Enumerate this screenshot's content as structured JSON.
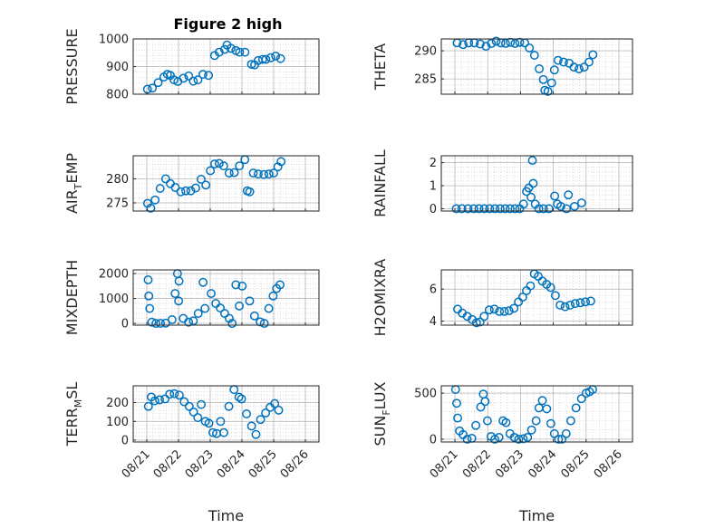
{
  "figure_title": "Figure 2 high",
  "x_date_ticks": [
    "08/21",
    "08/22",
    "08/23",
    "08/24",
    "08/25",
    "08/26"
  ],
  "marker_color": "#0072BD",
  "chart_data": [
    {
      "id": "pressure",
      "type": "scatter",
      "title": "Figure 2 high",
      "ylabel": "PRESSURE",
      "ylabel_sub": "",
      "ylabel_tail": "",
      "xlabel": "",
      "xlim": [
        "08/21",
        "08/26"
      ],
      "ylim": [
        800,
        1000
      ],
      "yticks": [
        800,
        900,
        1000
      ],
      "ytick_labels": [
        "800",
        "900",
        "1000"
      ],
      "grid": true,
      "t": [
        0.5,
        4.2,
        8.6,
        12.9,
        15.6,
        17.8,
        20.6,
        23.5,
        27.8,
        31.7,
        35.2,
        38.7,
        42.5,
        46.7,
        51.3,
        54.8,
        58.9,
        60.7,
        63.7,
        67.4,
        70.2,
        74.3,
        79.2,
        81.6,
        84.3,
        87.6,
        90.1,
        93.8,
        97.5,
        101.2
      ],
      "y": [
        818,
        822,
        842,
        862,
        872,
        868,
        852,
        846,
        858,
        866,
        847,
        852,
        872,
        868,
        940,
        952,
        962,
        978,
        966,
        958,
        952,
        952,
        908,
        906,
        922,
        926,
        926,
        932,
        938,
        929
      ]
    },
    {
      "id": "theta",
      "type": "scatter",
      "title": "",
      "ylabel": "THETA",
      "ylabel_sub": "",
      "ylabel_tail": "",
      "xlabel": "",
      "xlim": [
        "08/21",
        "08/26"
      ],
      "ylim": [
        282.3,
        292.1
      ],
      "yticks": [
        285,
        290
      ],
      "ytick_labels": [
        "285",
        "290"
      ],
      "grid": true,
      "t": [
        1.6,
        6.0,
        10.1,
        14.2,
        18.5,
        22.8,
        26.7,
        30.2,
        33.6,
        37.1,
        40.6,
        44.0,
        47.4,
        51.1,
        54.5,
        58.2,
        61.7,
        64.7,
        65.8,
        68.1,
        70.8,
        72.8,
        75.5,
        79.5,
        83.6,
        87.1,
        90.8,
        94.6,
        98.1,
        101.0
      ],
      "y": [
        291.4,
        291.1,
        291.4,
        291.4,
        291.2,
        290.8,
        291.3,
        291.7,
        291.4,
        291.3,
        291.5,
        291.3,
        291.5,
        291.4,
        290.5,
        289.2,
        286.8,
        284.9,
        283.0,
        282.8,
        284.3,
        286.6,
        288.3,
        288.0,
        287.8,
        287.1,
        286.8,
        287.1,
        288.0,
        289.3
      ]
    },
    {
      "id": "air_temp",
      "type": "scatter",
      "title": "",
      "ylabel": "AIR",
      "ylabel_sub": "T",
      "ylabel_tail": "EMP",
      "xlabel": "",
      "xlim": [
        "08/21",
        "08/26"
      ],
      "ylim": [
        273.3,
        284.8
      ],
      "yticks": [
        275,
        280
      ],
      "ytick_labels": [
        "275",
        "280"
      ],
      "grid": true,
      "t": [
        0.6,
        3.0,
        6.3,
        10.1,
        14.3,
        17.8,
        21.6,
        25.7,
        29.5,
        33.3,
        37.0,
        41.1,
        44.7,
        48.1,
        51.4,
        54.8,
        58.2,
        62.3,
        66.2,
        70.1,
        74.2,
        76.0,
        77.9,
        80.6,
        84.3,
        88.6,
        92.4,
        96.0,
        99.2,
        101.6
      ],
      "y": [
        274.9,
        273.9,
        275.6,
        278.0,
        280.0,
        279.0,
        278.2,
        277.3,
        277.5,
        277.5,
        278.1,
        279.9,
        278.7,
        281.7,
        283.1,
        283.2,
        282.7,
        281.2,
        281.3,
        282.7,
        284.0,
        277.5,
        277.3,
        281.2,
        281.0,
        280.9,
        281.0,
        281.2,
        282.5,
        283.6
      ]
    },
    {
      "id": "rainfall",
      "type": "scatter",
      "title": "",
      "ylabel": "RAINFALL",
      "ylabel_sub": "",
      "ylabel_tail": "",
      "xlabel": "",
      "xlim": [
        "08/21",
        "08/26"
      ],
      "ylim": [
        -0.1,
        2.3
      ],
      "yticks": [
        0,
        1,
        2
      ],
      "ytick_labels": [
        "0",
        "1",
        "2"
      ],
      "grid": true,
      "t": [
        1.0,
        5.1,
        9.6,
        13.8,
        17.6,
        21.5,
        25.4,
        29.3,
        33.1,
        36.8,
        40.4,
        44.0,
        47.4,
        50.2,
        52.4,
        54.0,
        55.7,
        56.7,
        57.3,
        58.8,
        61.4,
        64.8,
        68.8,
        73.0,
        75.0,
        77.5,
        81.6,
        83.0,
        87.5,
        92.7
      ],
      "y": [
        0,
        0,
        0,
        0,
        0,
        0,
        0,
        0,
        0,
        0,
        0,
        0,
        0,
        0.2,
        0.75,
        0.9,
        0.5,
        2.1,
        1.1,
        0.2,
        0,
        0,
        0,
        0.55,
        0.2,
        0.1,
        0,
        0.6,
        0.1,
        0.25
      ]
    },
    {
      "id": "mixdepth",
      "type": "scatter",
      "title": "",
      "ylabel": "MIXDEPTH",
      "ylabel_sub": "",
      "ylabel_tail": "",
      "xlabel": "",
      "xlim": [
        "08/21",
        "08/26"
      ],
      "ylim": [
        -70,
        2150
      ],
      "yticks": [
        0,
        1000,
        2000
      ],
      "ytick_labels": [
        "0",
        "1000",
        "2000"
      ],
      "grid": true,
      "t": [
        1.0,
        1.5,
        2.2,
        3.8,
        6.9,
        10.4,
        14.3,
        19.1,
        21.4,
        23.2,
        24.1,
        24.4,
        27.6,
        31.6,
        35.2,
        38.9,
        42.6,
        44.0,
        48.7,
        52.2,
        55.6,
        58.9,
        62.4,
        64.6,
        67.4,
        70.0,
        72.2,
        77.8,
        81.5,
        85.8,
        88.9,
        92.3,
        95.6,
        98.2,
        100.8
      ],
      "y": [
        1750,
        1100,
        600,
        50,
        0,
        0,
        10,
        150,
        1200,
        2000,
        900,
        1700,
        200,
        50,
        100,
        400,
        1650,
        600,
        1200,
        800,
        620,
        400,
        200,
        0,
        1550,
        700,
        1500,
        900,
        300,
        60,
        0,
        600,
        1100,
        1400,
        1550
      ]
    },
    {
      "id": "h2omixra",
      "type": "scatter",
      "title": "",
      "ylabel": "H2OMIXRA",
      "ylabel_sub": "",
      "ylabel_tail": "",
      "xlabel": "",
      "xlim": [
        "08/21",
        "08/26"
      ],
      "ylim": [
        3.75,
        7.2
      ],
      "yticks": [
        4,
        6
      ],
      "ytick_labels": [
        "4",
        "6"
      ],
      "grid": true,
      "t": [
        2.0,
        5.4,
        9.0,
        12.6,
        15.8,
        18.4,
        21.4,
        25.1,
        28.9,
        32.6,
        36.2,
        39.6,
        43.2,
        46.5,
        49.6,
        52.4,
        55.3,
        58.1,
        61.0,
        64.0,
        67.1,
        70.1,
        73.5,
        77.0,
        80.6,
        84.3,
        88.0,
        91.8,
        95.5,
        99.4
      ],
      "y": [
        4.75,
        4.5,
        4.3,
        4.1,
        3.9,
        3.95,
        4.3,
        4.7,
        4.75,
        4.6,
        4.6,
        4.65,
        4.8,
        5.2,
        5.5,
        5.9,
        6.2,
        6.95,
        6.8,
        6.5,
        6.3,
        6.1,
        5.6,
        5.0,
        4.9,
        5.0,
        5.1,
        5.15,
        5.2,
        5.25
      ]
    },
    {
      "id": "terr_msl",
      "type": "scatter",
      "title": "",
      "ylabel": "TERR",
      "ylabel_sub": "M",
      "ylabel_tail": "SL",
      "xlabel": "Time",
      "xlim": [
        "08/21",
        "08/26"
      ],
      "ylim": [
        -10,
        290
      ],
      "yticks": [
        0,
        100,
        200
      ],
      "ytick_labels": [
        "0",
        "100",
        "200"
      ],
      "grid": true,
      "t": [
        1.2,
        3.4,
        6.1,
        9.7,
        13.8,
        17.3,
        20.8,
        24.6,
        28.3,
        32.1,
        35.4,
        38.6,
        41.2,
        44.3,
        47.0,
        50.0,
        52.8,
        55.8,
        58.3,
        62.1,
        66.0,
        69.7,
        71.7,
        75.5,
        79.3,
        82.6,
        86.1,
        89.9,
        93.3,
        96.8,
        99.8
      ],
      "y": [
        180,
        230,
        210,
        215,
        220,
        245,
        248,
        240,
        205,
        180,
        150,
        120,
        190,
        100,
        90,
        40,
        35,
        100,
        40,
        180,
        270,
        230,
        220,
        140,
        75,
        30,
        110,
        145,
        175,
        195,
        160
      ]
    },
    {
      "id": "sun_flux",
      "type": "scatter",
      "title": "",
      "ylabel": "SUN",
      "ylabel_sub": "F",
      "ylabel_tail": "LUX",
      "xlabel": "Time",
      "xlim": [
        "08/21",
        "08/26"
      ],
      "ylim": [
        -30,
        580
      ],
      "yticks": [
        0,
        500
      ],
      "ytick_labels": [
        "0",
        "500"
      ],
      "grid": true,
      "t": [
        0.5,
        1.3,
        2.0,
        3.4,
        6.0,
        9.0,
        12.4,
        15.3,
        18.9,
        20.8,
        22.1,
        23.8,
        26.5,
        29.2,
        32.3,
        35.2,
        37.4,
        40.3,
        43.5,
        46.7,
        50.0,
        53.2,
        56.1,
        59.4,
        61.5,
        64.0,
        67.2,
        70.2,
        72.8,
        75.8,
        78.3,
        81.4,
        84.8,
        88.6,
        92.6,
        96.0,
        98.5,
        100.8
      ],
      "y": [
        540,
        390,
        230,
        90,
        50,
        0,
        10,
        150,
        350,
        490,
        410,
        200,
        30,
        0,
        20,
        200,
        180,
        60,
        20,
        0,
        5,
        20,
        100,
        200,
        340,
        420,
        330,
        170,
        60,
        0,
        0,
        60,
        200,
        340,
        440,
        500,
        515,
        540
      ]
    }
  ]
}
